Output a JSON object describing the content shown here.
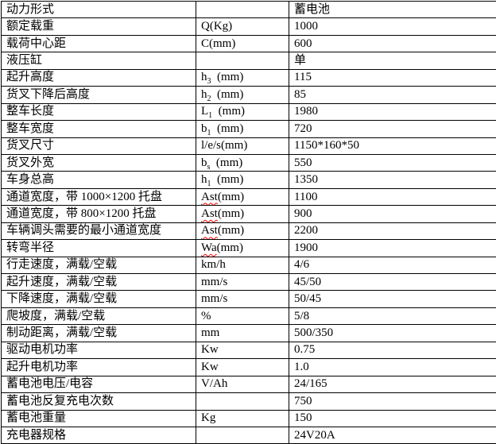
{
  "document": {
    "type": "specification-table",
    "subject_value": "蓄电池",
    "colors": {
      "background": "#ffffff",
      "border": "#000000",
      "text": "#000000",
      "spellcheck_squiggle": "#ff0000"
    }
  },
  "chart_data": {
    "type": "table",
    "columns": [
      "parameter",
      "symbol_unit",
      "value"
    ],
    "rows": [
      {
        "label": "动力形式",
        "sym": null,
        "value": "蓄电池"
      },
      {
        "label": "额定载重",
        "sym": {
          "pre": "Q(Kg)"
        },
        "value": "1000"
      },
      {
        "label": "载荷中心距",
        "sym": {
          "pre": "C(mm)"
        },
        "value": "600"
      },
      {
        "label": "液压缸",
        "sym": null,
        "value": "单"
      },
      {
        "label": "起升高度",
        "sym": {
          "pre": "h",
          "sub": "3",
          "tail": "  (mm)"
        },
        "value": "115"
      },
      {
        "label": "货叉下降后高度",
        "sym": {
          "pre": "h",
          "sub": "2",
          "tail": "  (mm)"
        },
        "value": "85"
      },
      {
        "label": "整车长度",
        "sym": {
          "pre": "L",
          "sub": "1",
          "tail": "  (mm)"
        },
        "value": "1980"
      },
      {
        "label": "整车宽度",
        "sym": {
          "pre": "b",
          "sub": "1",
          "tail": "  (mm)"
        },
        "value": "720"
      },
      {
        "label": "货叉尺寸",
        "sym": {
          "pre": "l/e/s(mm)"
        },
        "value": "1150*160*50"
      },
      {
        "label": "货叉外宽",
        "sym": {
          "pre": "b",
          "sub": "s",
          "tail": "  (mm)"
        },
        "value": "550"
      },
      {
        "label": "车身总高",
        "sym": {
          "pre": "h",
          "sub": "1",
          "tail": "  (mm)"
        },
        "value": "1350"
      },
      {
        "label": "通道宽度，带 1000×1200 托盘",
        "sym": {
          "wavy": "Ast",
          "tail": "(mm)"
        },
        "value": "1100"
      },
      {
        "label": "通道宽度，带 800×1200 托盘",
        "sym": {
          "wavy": "Ast",
          "tail": "(mm)"
        },
        "value": "900"
      },
      {
        "label": "车辆调头需要的最小通道宽度",
        "sym": {
          "wavy": "Ast",
          "tail": "(mm)"
        },
        "value": "2200"
      },
      {
        "label": "转弯半径",
        "sym": {
          "wavy": "Wa",
          "tail": "(mm)"
        },
        "value": "1900"
      },
      {
        "label": "行走速度，满载/空载",
        "sym": {
          "pre": "km/h"
        },
        "value": "4/6"
      },
      {
        "label": "起升速度，满载/空载",
        "sym": {
          "pre": "mm/s"
        },
        "value": "45/50"
      },
      {
        "label": "下降速度，满载/空载",
        "sym": {
          "pre": "mm/s"
        },
        "value": "50/45"
      },
      {
        "label": "爬坡度，满载/空载",
        "sym": {
          "pre": "%"
        },
        "value": "5/8"
      },
      {
        "label": "制动距离，满载/空载",
        "sym": {
          "pre": "mm"
        },
        "value": "500/350"
      },
      {
        "label": "驱动电机功率",
        "sym": {
          "pre": "Kw"
        },
        "value": "0.75"
      },
      {
        "label": "起升电机功率",
        "sym": {
          "pre": "Kw"
        },
        "value": "1.0"
      },
      {
        "label": "蓄电池电压/电容",
        "sym": {
          "pre": "V/Ah"
        },
        "value": "24/165"
      },
      {
        "label": "蓄电池反复充电次数",
        "sym": null,
        "value": "750"
      },
      {
        "label": "蓄电池重量",
        "sym": {
          "pre": "Kg"
        },
        "value": "150"
      },
      {
        "label": "充电器规格",
        "sym": null,
        "value": "24V20A"
      }
    ]
  }
}
